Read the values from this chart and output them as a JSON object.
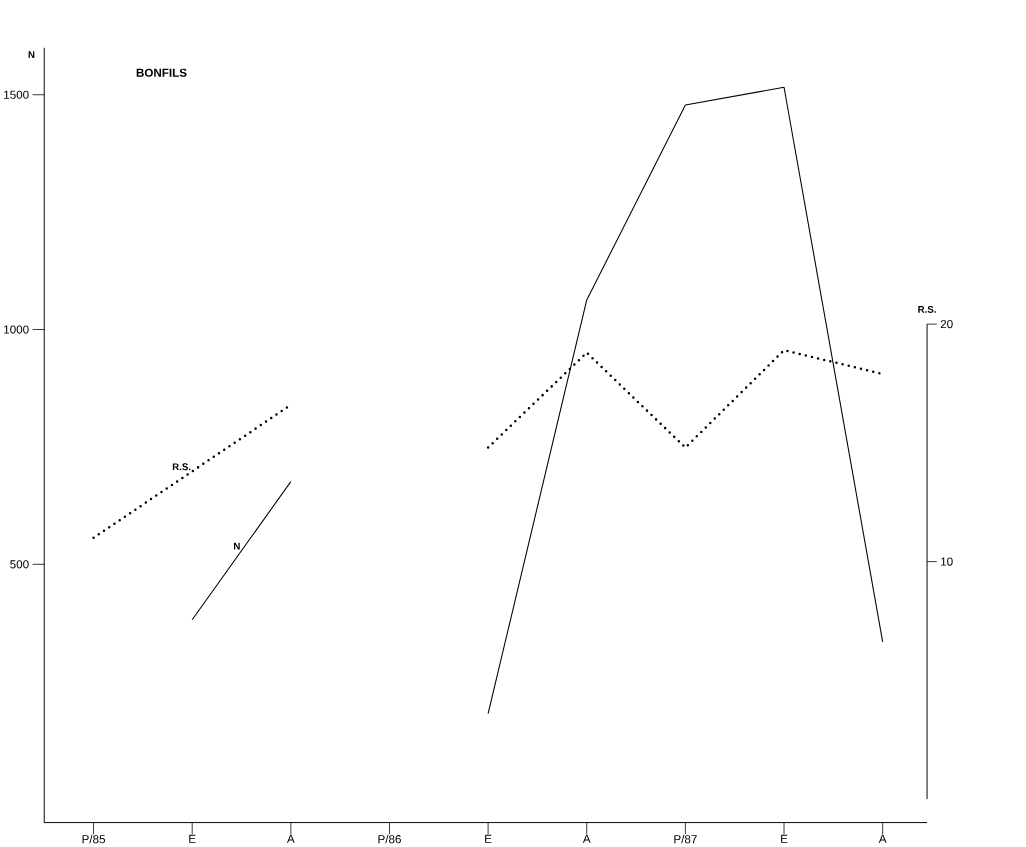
{
  "chart_data": {
    "type": "line",
    "title": "BONFILS",
    "categories": [
      "P/85",
      "E",
      "A",
      "P/86",
      "E",
      "A",
      "P/87",
      "E",
      "A"
    ],
    "series": [
      {
        "name": "N",
        "color": "#000000",
        "line_style": "solid",
        "values": [
          null,
          382,
          676,
          null,
          182,
          1063,
          1478,
          1516,
          335
        ]
      },
      {
        "name": "R.S.",
        "color": "#000000",
        "line_style": "dotted",
        "axis": "y2",
        "values": [
          11.0,
          13.8,
          16.6,
          null,
          14.8,
          18.8,
          14.8,
          18.9,
          17.9
        ]
      }
    ],
    "ylabel": "N",
    "y2label": "R.S.",
    "ylim": [
      -50,
      1600
    ],
    "yticks": [
      500,
      1000,
      1500
    ],
    "y2lim": [
      0,
      20
    ],
    "y2ticks": [
      10,
      20
    ]
  }
}
